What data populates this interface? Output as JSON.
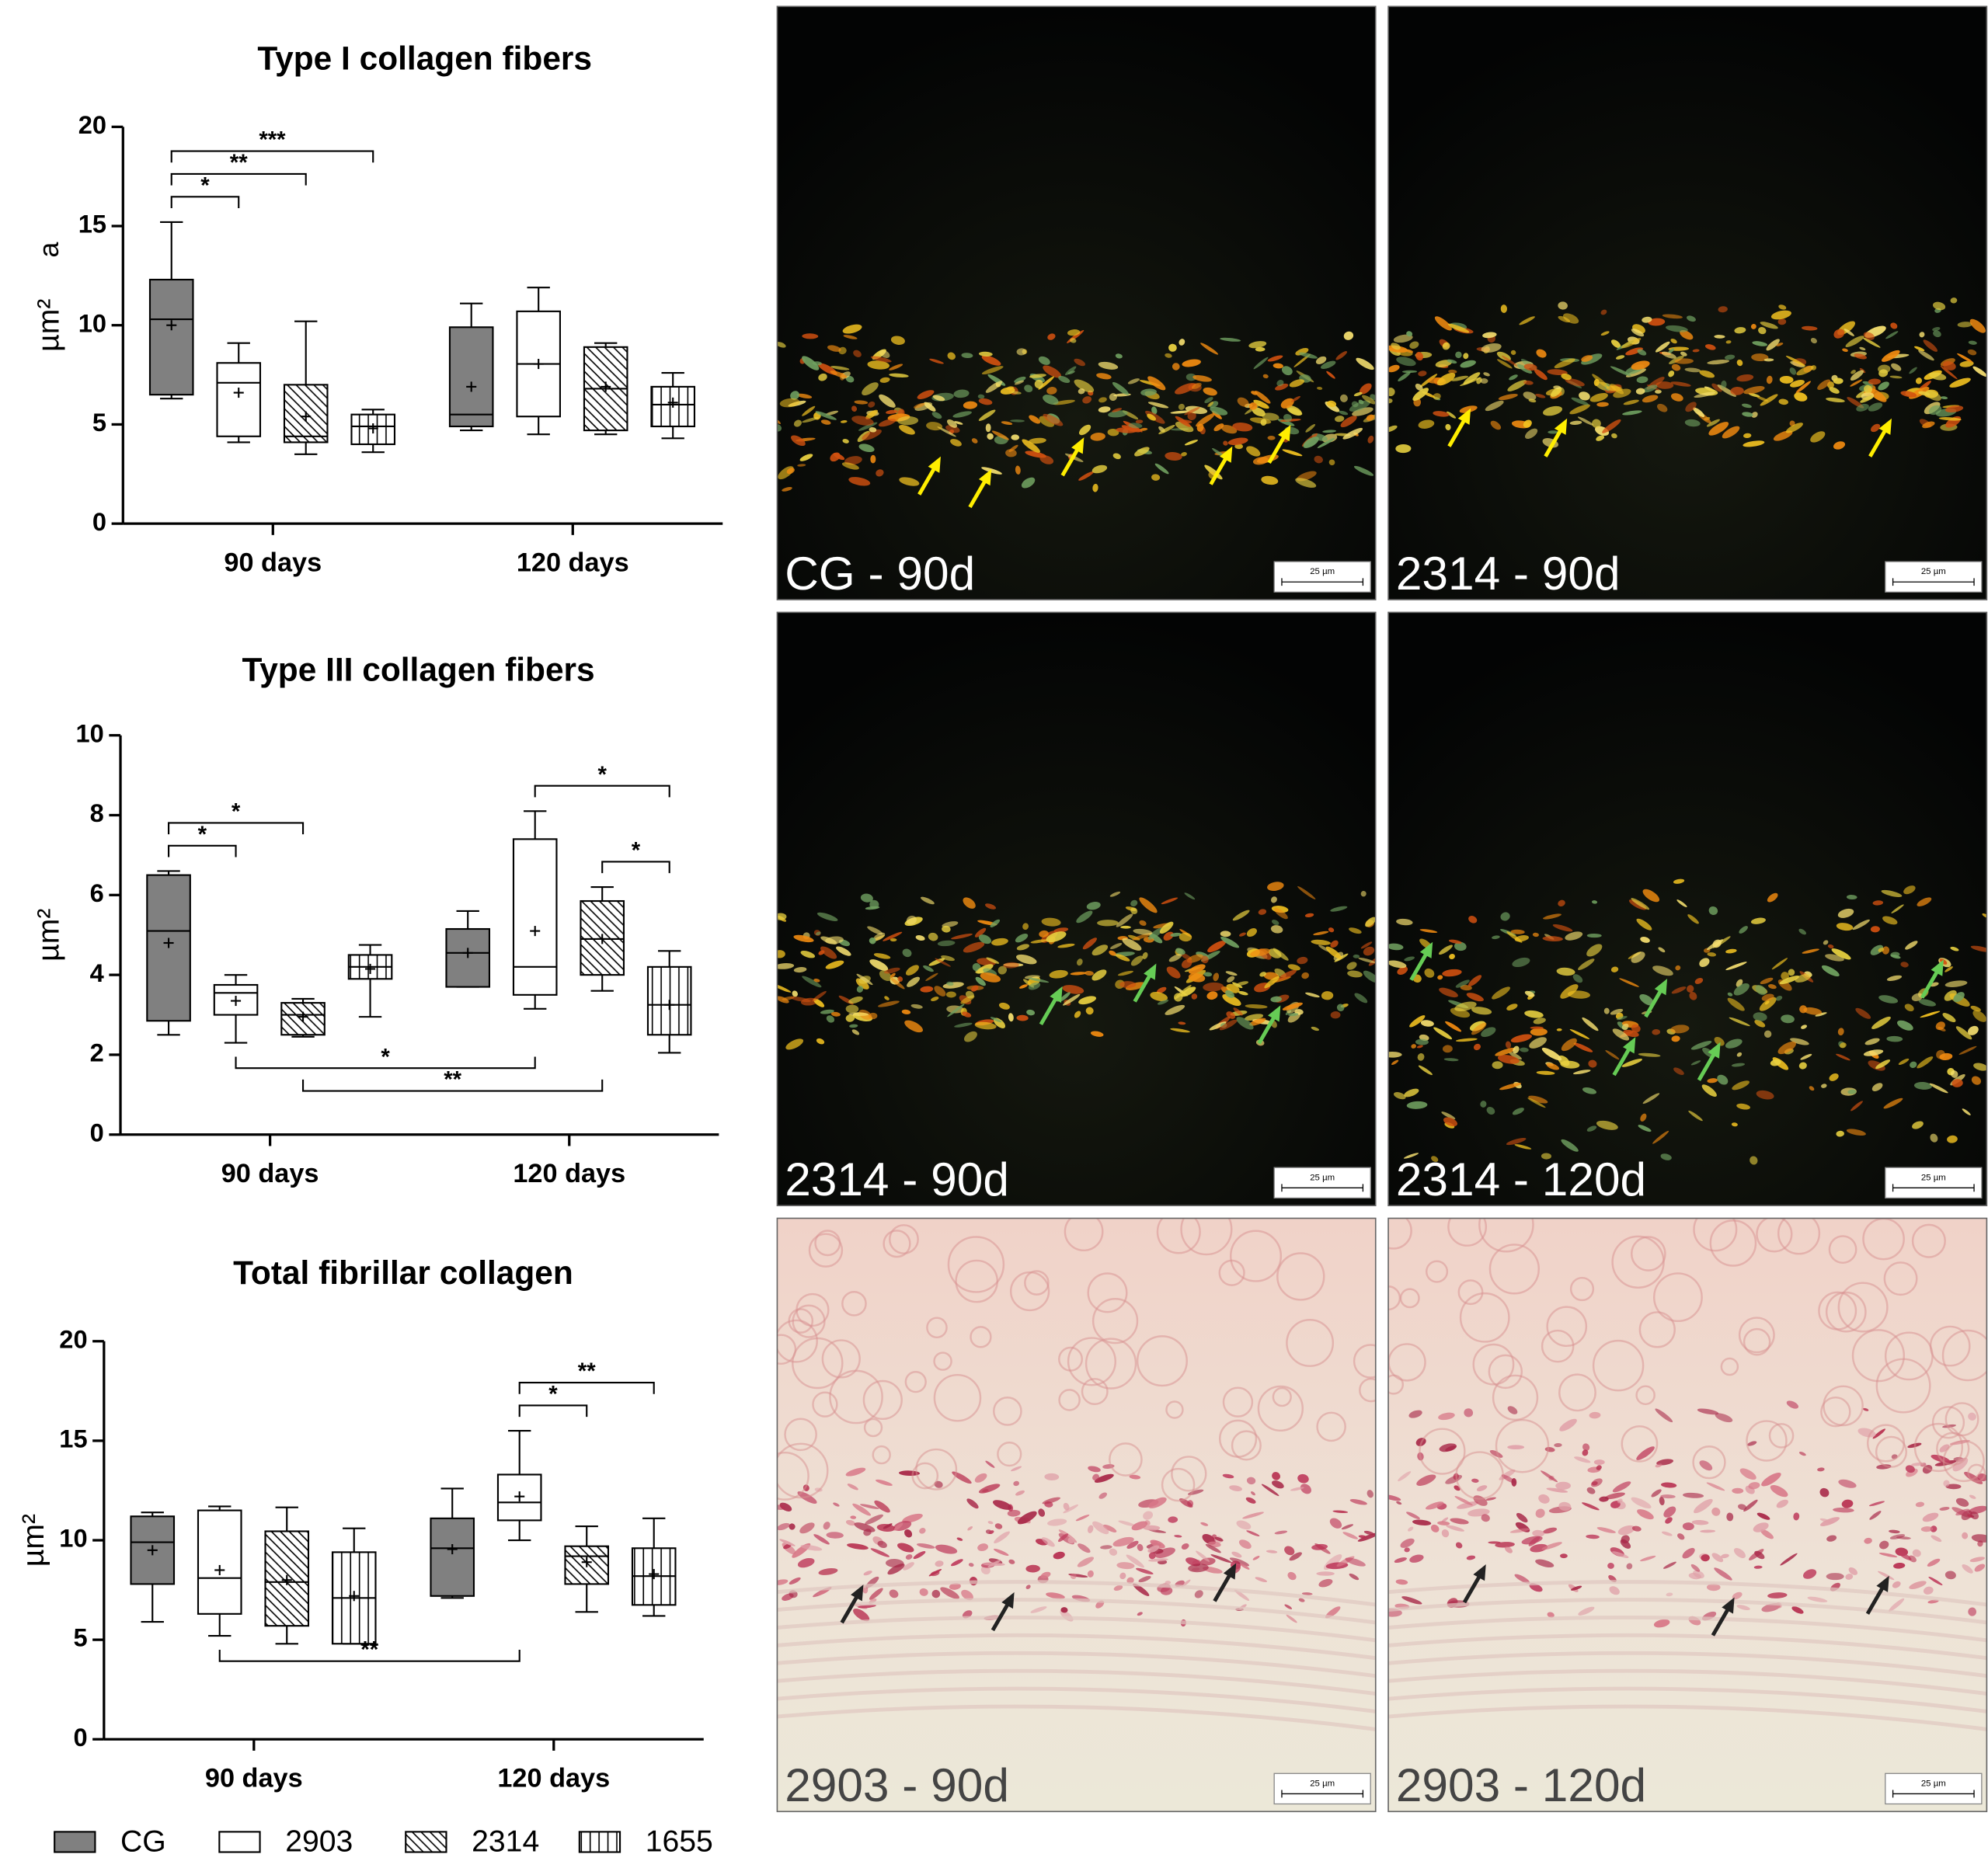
{
  "chart_data": [
    {
      "type": "box",
      "title": "Type I collagen fibers",
      "panel_label": "a",
      "ylabel": "µm²",
      "categories": [
        "90 days",
        "120 days"
      ],
      "ylim": [
        0,
        20
      ],
      "yticks": [
        0,
        5,
        10,
        15,
        20
      ],
      "series": [
        {
          "min": [
            6.3,
            4.7
          ],
          "q1": [
            6.5,
            4.9
          ],
          "median": [
            10.3,
            5.5
          ],
          "q3": [
            12.3,
            9.9
          ],
          "max": [
            15.2,
            11.1
          ],
          "mean": [
            10.0,
            6.9
          ]
        },
        {
          "min": [
            4.1,
            4.5
          ],
          "q1": [
            4.4,
            5.4
          ],
          "median": [
            7.1,
            8.05
          ],
          "q3": [
            8.1,
            10.7
          ],
          "max": [
            9.1,
            11.9
          ],
          "mean": [
            6.6,
            8.05
          ]
        },
        {
          "min": [
            3.5,
            4.5
          ],
          "q1": [
            4.1,
            4.7
          ],
          "median": [
            4.4,
            6.8
          ],
          "q3": [
            7.0,
            8.9
          ],
          "max": [
            10.2,
            9.1
          ],
          "mean": [
            5.4,
            6.9
          ]
        },
        {
          "min": [
            3.6,
            4.3
          ],
          "q1": [
            4.0,
            4.9
          ],
          "median": [
            4.9,
            6.0
          ],
          "q3": [
            5.5,
            6.9
          ],
          "max": [
            5.75,
            7.6
          ],
          "mean": [
            4.8,
            6.1
          ]
        }
      ],
      "annotations": [
        {
          "text": "*",
          "from": [
            0,
            0
          ],
          "to": [
            0,
            1
          ],
          "side": "above"
        },
        {
          "text": "**",
          "from": [
            0,
            0
          ],
          "to": [
            0,
            2
          ],
          "side": "above"
        },
        {
          "text": "***",
          "from": [
            0,
            0
          ],
          "to": [
            0,
            3
          ],
          "side": "above"
        }
      ]
    },
    {
      "type": "box",
      "title": "Type III collagen fibers",
      "ylabel": "µm²",
      "categories": [
        "90 days",
        "120 days"
      ],
      "ylim": [
        0,
        10
      ],
      "yticks": [
        0,
        2,
        4,
        6,
        8,
        10
      ],
      "series": [
        {
          "min": [
            2.5,
            3.7
          ],
          "q1": [
            2.85,
            3.7
          ],
          "median": [
            5.1,
            4.55
          ],
          "q3": [
            6.5,
            5.15
          ],
          "max": [
            6.6,
            5.6
          ],
          "mean": [
            4.8,
            4.55
          ]
        },
        {
          "min": [
            2.3,
            3.15
          ],
          "q1": [
            3.0,
            3.5
          ],
          "median": [
            3.55,
            4.2
          ],
          "q3": [
            3.75,
            7.4
          ],
          "max": [
            4.0,
            8.1
          ],
          "mean": [
            3.35,
            5.1
          ]
        },
        {
          "min": [
            2.45,
            3.6
          ],
          "q1": [
            2.5,
            4.0
          ],
          "median": [
            3.0,
            4.9
          ],
          "q3": [
            3.3,
            5.85
          ],
          "max": [
            3.4,
            6.2
          ],
          "mean": [
            2.95,
            4.9
          ]
        },
        {
          "min": [
            2.95,
            2.05
          ],
          "q1": [
            3.9,
            2.5
          ],
          "median": [
            4.2,
            3.25
          ],
          "q3": [
            4.5,
            4.2
          ],
          "max": [
            4.75,
            4.6
          ],
          "mean": [
            4.15,
            3.25
          ]
        }
      ],
      "annotations": [
        {
          "text": "*",
          "from": [
            0,
            0
          ],
          "to": [
            0,
            1
          ],
          "side": "above"
        },
        {
          "text": "*",
          "from": [
            0,
            0
          ],
          "to": [
            0,
            2
          ],
          "side": "above"
        },
        {
          "text": "*",
          "from": [
            1,
            2
          ],
          "to": [
            1,
            3
          ],
          "side": "above"
        },
        {
          "text": "*",
          "from": [
            1,
            1
          ],
          "to": [
            1,
            3
          ],
          "side": "above"
        },
        {
          "text": "*",
          "from": [
            0,
            1
          ],
          "to": [
            1,
            1
          ],
          "side": "below"
        },
        {
          "text": "**",
          "from": [
            0,
            2
          ],
          "to": [
            1,
            2
          ],
          "side": "below"
        }
      ]
    },
    {
      "type": "box",
      "title": "Total fibrillar collagen",
      "ylabel": "µm²",
      "categories": [
        "90 days",
        "120 days"
      ],
      "ylim": [
        0,
        20
      ],
      "yticks": [
        0,
        5,
        10,
        15,
        20
      ],
      "series": [
        {
          "min": [
            5.9,
            7.1
          ],
          "q1": [
            7.8,
            7.2
          ],
          "median": [
            9.9,
            9.6
          ],
          "q3": [
            11.2,
            11.1
          ],
          "max": [
            11.4,
            12.6
          ],
          "mean": [
            9.5,
            9.55
          ]
        },
        {
          "min": [
            5.2,
            10.0
          ],
          "q1": [
            6.3,
            11.0
          ],
          "median": [
            8.1,
            11.9
          ],
          "q3": [
            11.5,
            13.3
          ],
          "max": [
            11.7,
            15.5
          ],
          "mean": [
            8.5,
            12.2
          ]
        },
        {
          "min": [
            4.8,
            6.4
          ],
          "q1": [
            5.7,
            7.8
          ],
          "median": [
            7.9,
            9.2
          ],
          "q3": [
            10.45,
            9.7
          ],
          "max": [
            11.65,
            10.7
          ],
          "mean": [
            8.0,
            8.9
          ]
        },
        {
          "min": [
            4.8,
            6.2
          ],
          "q1": [
            4.8,
            6.75
          ],
          "median": [
            7.1,
            8.2
          ],
          "q3": [
            9.4,
            9.6
          ],
          "max": [
            10.6,
            11.1
          ],
          "mean": [
            7.2,
            8.3
          ]
        }
      ],
      "annotations": [
        {
          "text": "*",
          "from": [
            1,
            1
          ],
          "to": [
            1,
            2
          ],
          "side": "above"
        },
        {
          "text": "**",
          "from": [
            1,
            1
          ],
          "to": [
            1,
            3
          ],
          "side": "above"
        },
        {
          "text": "**",
          "from": [
            0,
            1
          ],
          "to": [
            1,
            1
          ],
          "side": "below"
        }
      ]
    }
  ],
  "legend": [
    {
      "name": "CG",
      "color": "#808080",
      "pattern": "solid"
    },
    {
      "name": "2903",
      "color": "#ffffff",
      "pattern": "solid"
    },
    {
      "name": "2314",
      "color": "#ffffff",
      "pattern": "diagonal"
    },
    {
      "name": "1655",
      "color": "#ffffff",
      "pattern": "vertical"
    }
  ],
  "micrographs": [
    {
      "label": "CG - 90d",
      "scale_bar": "25 µm",
      "stain": "polarized"
    },
    {
      "label": "2314 - 90d",
      "scale_bar": "25 µm",
      "stain": "polarized"
    },
    {
      "label": "2314 - 90d",
      "scale_bar": "25 µm",
      "stain": "polarized"
    },
    {
      "label": "2314 - 120d",
      "scale_bar": "25 µm",
      "stain": "polarized"
    },
    {
      "label": "2903 - 90d",
      "scale_bar": "25 µm",
      "stain": "picrosirius"
    },
    {
      "label": "2903 - 120d",
      "scale_bar": "25 µm",
      "stain": "picrosirius"
    }
  ]
}
